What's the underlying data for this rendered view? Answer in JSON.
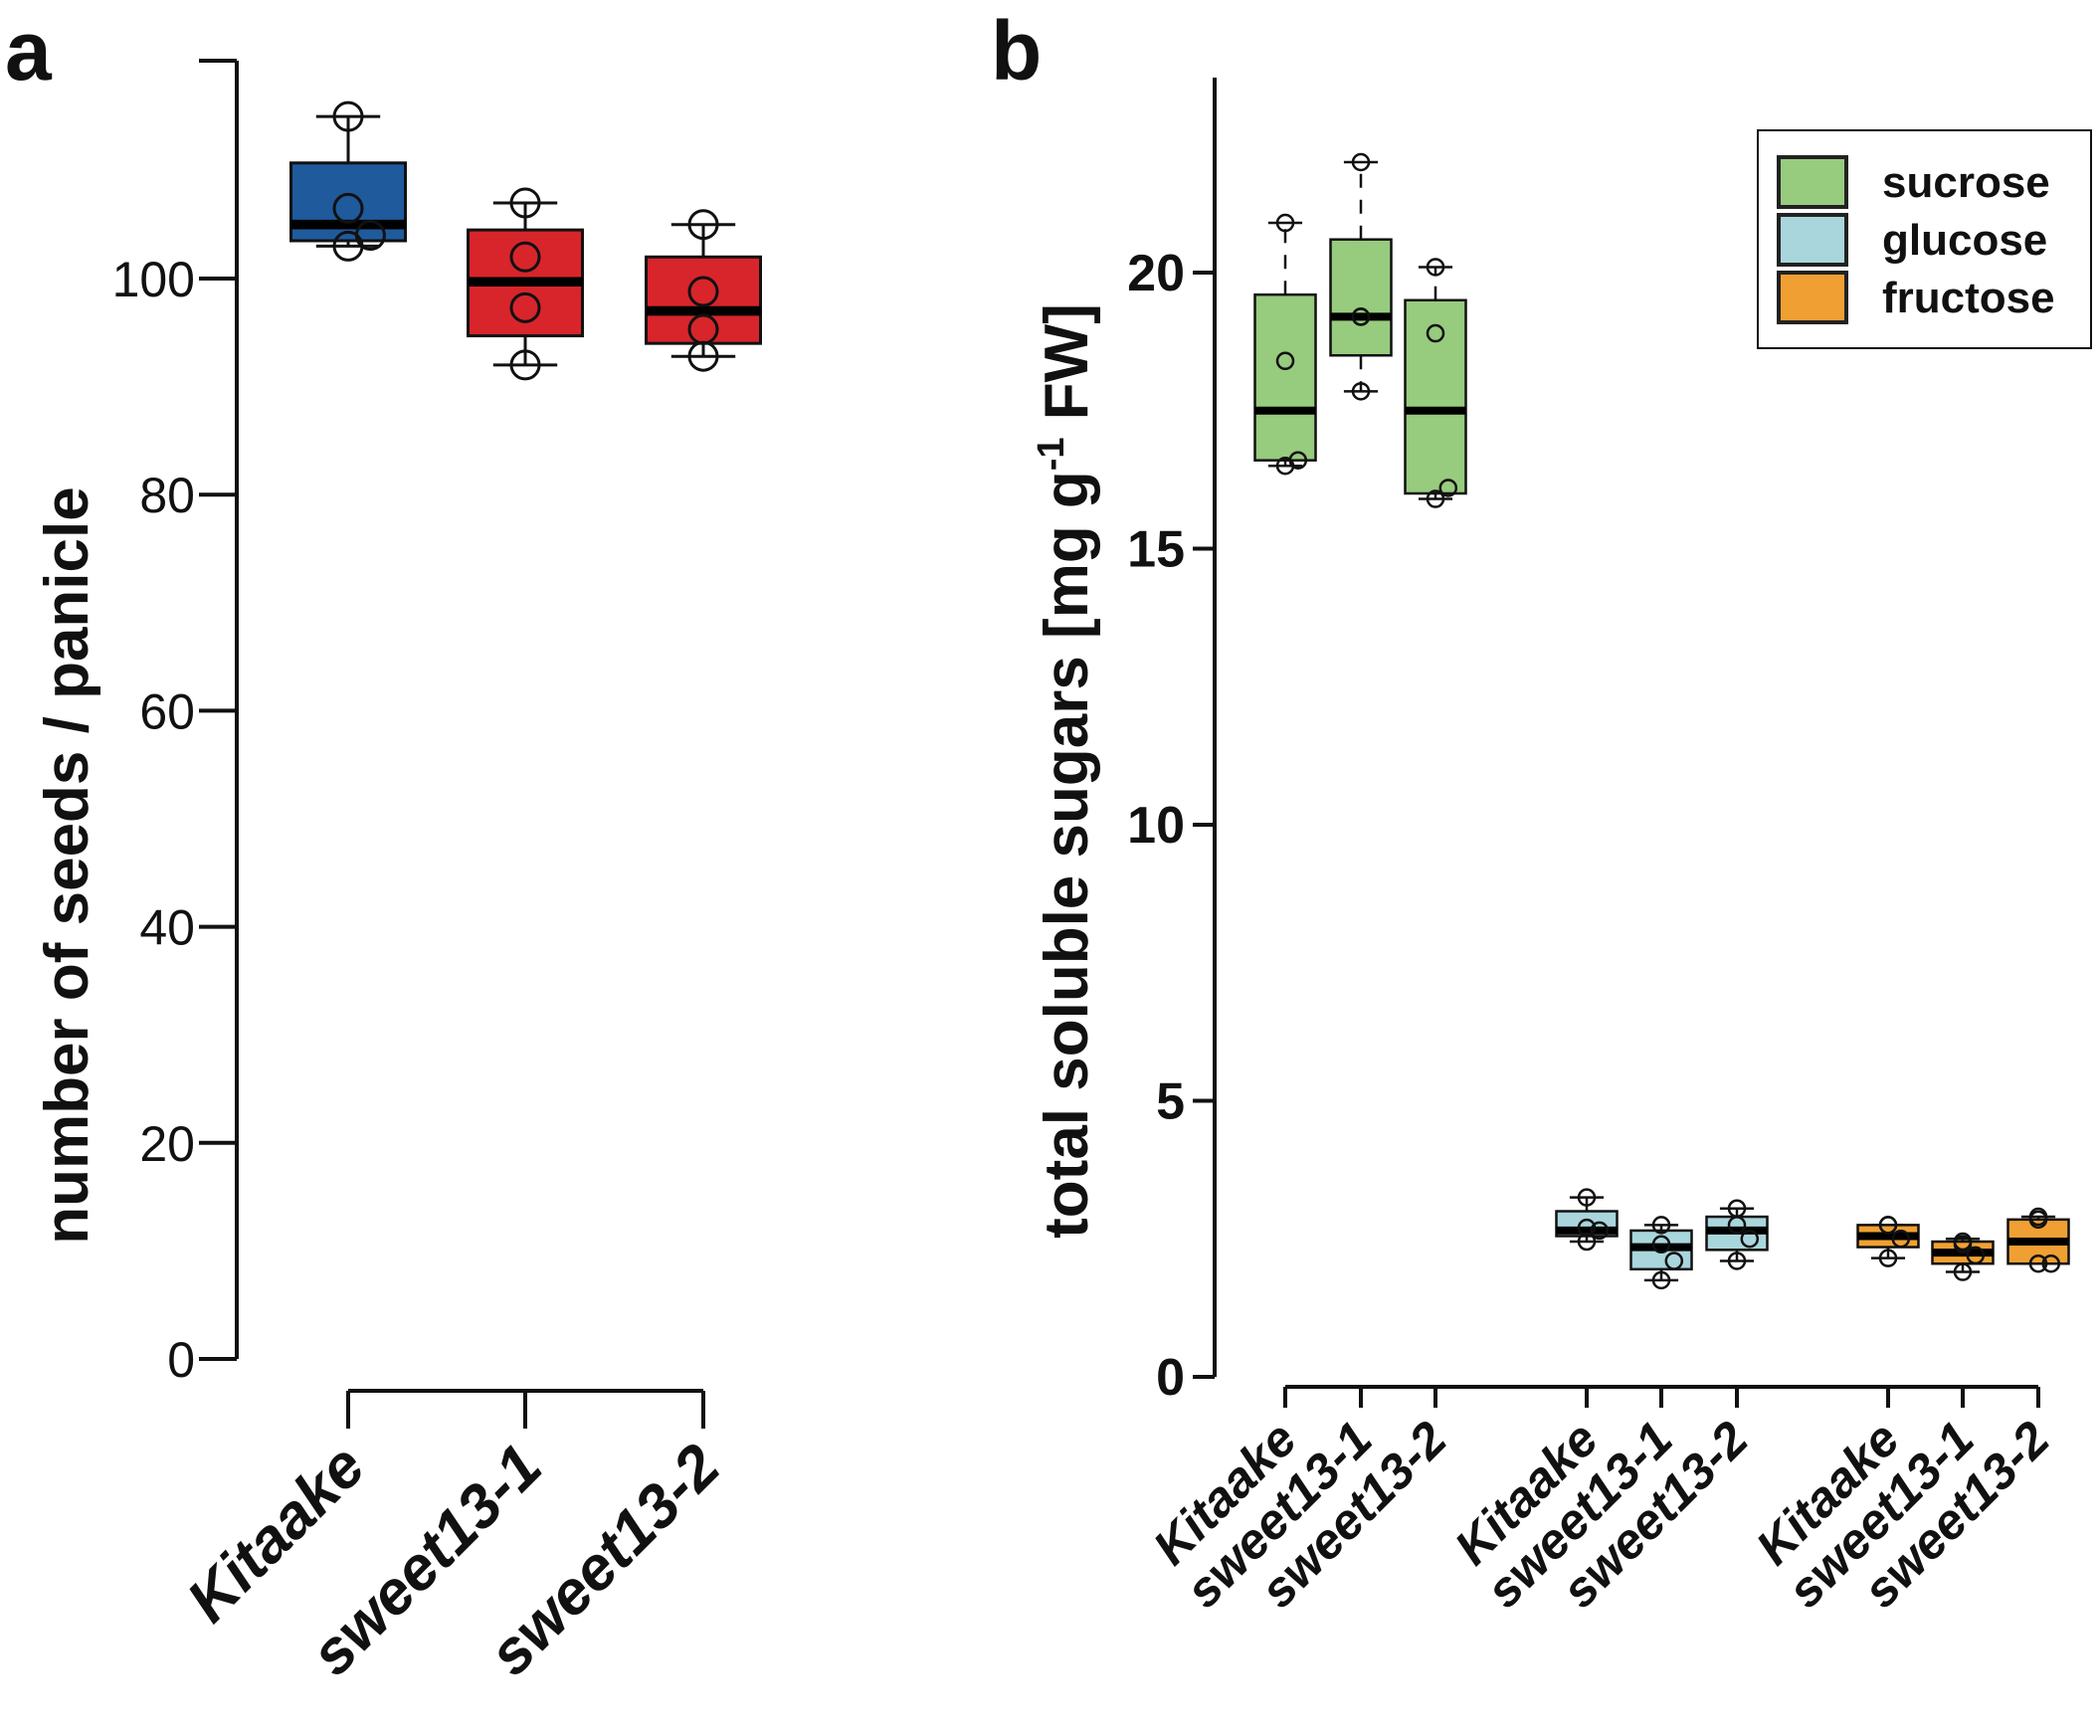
{
  "chart_data": [
    {
      "type": "box",
      "panel_label": "a",
      "ylabel": "number of seeds / panicle",
      "xlabel": "",
      "ylim": [
        0,
        120
      ],
      "yticks": [
        0,
        20,
        40,
        60,
        80,
        100
      ],
      "grid": false,
      "categories": [
        "Kitaake",
        "sweet13-1",
        "sweet13-2"
      ],
      "colors": [
        "#1f5a9c",
        "#d7252b",
        "#d7252b"
      ],
      "boxes": [
        {
          "q1": 103.5,
          "median": 105,
          "q3": 110.7,
          "whisker_low": 103,
          "whisker_high": 115,
          "points": [
            115,
            106.5,
            104,
            103
          ]
        },
        {
          "q1": 94.7,
          "median": 99.7,
          "q3": 104.5,
          "whisker_low": 92,
          "whisker_high": 107,
          "points": [
            107,
            102,
            97.3,
            92
          ]
        },
        {
          "q1": 94,
          "median": 97,
          "q3": 102,
          "whisker_low": 92.8,
          "whisker_high": 105,
          "points": [
            105,
            98.8,
            95.3,
            92.8
          ]
        }
      ]
    },
    {
      "type": "box",
      "panel_label": "b",
      "ylabel": "total soluble sugars [mg g-1 FW]",
      "ylabel_parts": {
        "main": "total soluble sugars [mg g",
        "sup": "-1",
        "end": " FW]"
      },
      "xlabel": "",
      "ylim": [
        0,
        23.5
      ],
      "yticks": [
        0,
        5,
        10,
        15,
        20
      ],
      "grid": false,
      "legend": {
        "position": "top-right",
        "entries": [
          {
            "label": "sucrose",
            "color": "#97cb7e"
          },
          {
            "label": "glucose",
            "color": "#a9d6dc"
          },
          {
            "label": "fructose",
            "color": "#f0a032"
          }
        ]
      },
      "categories": [
        "Kitaake",
        "sweet13-1",
        "sweet13-2",
        "Kitaake",
        "sweet13-1",
        "sweet13-2",
        "Kitaake",
        "sweet13-1",
        "sweet13-2"
      ],
      "series": [
        {
          "name": "sucrose",
          "boxes": [
            {
              "q1": 16.6,
              "median": 17.5,
              "q3": 19.6,
              "whisker_low": 16.5,
              "whisker_high": 20.9,
              "points": [
                20.9,
                18.4,
                16.6,
                16.5
              ]
            },
            {
              "q1": 18.5,
              "median": 19.2,
              "q3": 20.6,
              "whisker_low": 17.85,
              "whisker_high": 22,
              "points": [
                22,
                19.2,
                19.2,
                17.85
              ]
            },
            {
              "q1": 16,
              "median": 17.5,
              "q3": 19.5,
              "whisker_low": 15.9,
              "whisker_high": 20.1,
              "points": [
                20.1,
                18.9,
                16.1,
                15.9
              ]
            }
          ]
        },
        {
          "name": "glucose",
          "boxes": [
            {
              "q1": 2.55,
              "median": 2.65,
              "q3": 3.0,
              "whisker_low": 2.45,
              "whisker_high": 3.25,
              "points": [
                3.25,
                2.7,
                2.65,
                2.45
              ]
            },
            {
              "q1": 1.95,
              "median": 2.35,
              "q3": 2.65,
              "whisker_low": 1.75,
              "whisker_high": 2.75,
              "points": [
                2.75,
                2.4,
                2.1,
                1.75
              ]
            },
            {
              "q1": 2.3,
              "median": 2.65,
              "q3": 2.9,
              "whisker_low": 2.1,
              "whisker_high": 3.05,
              "points": [
                3.05,
                2.75,
                2.5,
                2.1
              ]
            }
          ]
        },
        {
          "name": "fructose",
          "boxes": [
            {
              "q1": 2.35,
              "median": 2.55,
              "q3": 2.75,
              "whisker_low": 2.15,
              "whisker_high": 2.75,
              "points": [
                2.75,
                2.75,
                2.5,
                2.15
              ]
            },
            {
              "q1": 2.05,
              "median": 2.25,
              "q3": 2.45,
              "whisker_low": 1.9,
              "whisker_high": 2.5,
              "points": [
                2.45,
                2.4,
                2.2,
                1.9
              ]
            },
            {
              "q1": 2.05,
              "median": 2.45,
              "q3": 2.85,
              "whisker_low": 2.05,
              "whisker_high": 2.9,
              "points": [
                2.9,
                2.85,
                2.05,
                2.05
              ]
            }
          ]
        }
      ]
    }
  ]
}
